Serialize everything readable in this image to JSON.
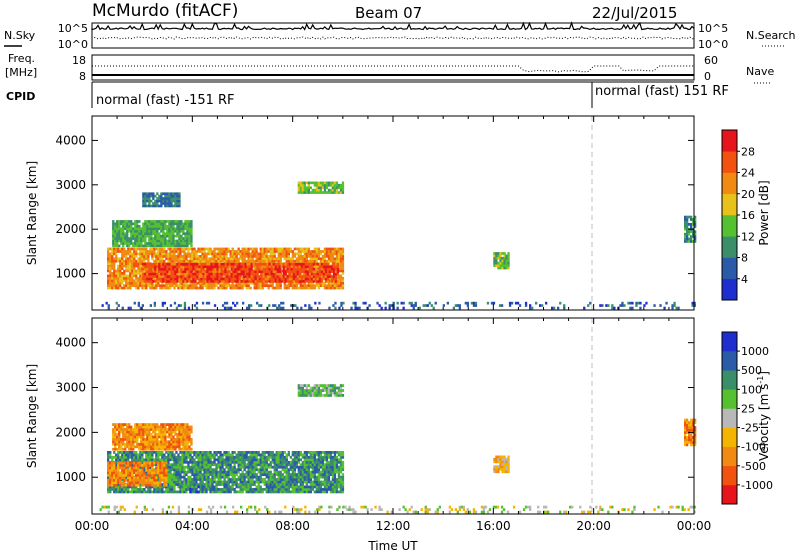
{
  "header": {
    "station": "McMurdo (fitACF)",
    "beam": "Beam 07",
    "date": "22/Jul/2015"
  },
  "noise_panel": {
    "left_label": "N.Sky",
    "right_label": "N.Search",
    "left_ticks": [
      "10^5",
      "10^0"
    ],
    "right_ticks": [
      "10^5",
      "10^0"
    ]
  },
  "freq_panel": {
    "left_label_line1": "Freq.",
    "left_label_line2": "[MHz]",
    "left_ticks": [
      "18",
      "8"
    ],
    "right_label": "Nave",
    "right_ticks": [
      "60",
      "0"
    ]
  },
  "cpid": {
    "label": "CPID",
    "segments": [
      {
        "text": "normal (fast) -151 RF",
        "start_hour": 0
      },
      {
        "text": "normal (fast) 151 RF",
        "start_hour": 20
      }
    ]
  },
  "x_axis": {
    "label": "Time UT",
    "range_hours": [
      0,
      24
    ],
    "ticks": [
      {
        "hour": 0,
        "label": "00:00"
      },
      {
        "hour": 4,
        "label": "04:00"
      },
      {
        "hour": 8,
        "label": "08:00"
      },
      {
        "hour": 12,
        "label": "12:00"
      },
      {
        "hour": 16,
        "label": "16:00"
      },
      {
        "hour": 20,
        "label": "20:00"
      },
      {
        "hour": 24,
        "label": "00:00"
      }
    ]
  },
  "colors": {
    "power": [
      "#1f2ecf",
      "#2b5aa8",
      "#3a8f6a",
      "#55c030",
      "#e8c21a",
      "#f08a12",
      "#f25210",
      "#e8141c"
    ],
    "velocity": [
      "#e8141c",
      "#f25210",
      "#f08a12",
      "#f5b400",
      "#b8b8b8",
      "#55c030",
      "#3a8f6a",
      "#2b5aa8",
      "#1f2ecf"
    ]
  },
  "chart_data": [
    {
      "type": "heatmap",
      "name_label": "Power [dB]",
      "ylabel": "Slant Range [km]",
      "xlabel": "",
      "ylim": [
        180,
        4550
      ],
      "yticks": [
        1000,
        2000,
        3000,
        4000
      ],
      "colorbar_ticks": [
        "4",
        "8",
        "12",
        "16",
        "20",
        "24",
        "28"
      ],
      "colorbar_range": [
        0,
        32
      ],
      "regions": [
        {
          "t0": 0.6,
          "t1": 10.0,
          "r0": 650,
          "r1": 1550,
          "base": 22
        },
        {
          "t0": 2.0,
          "t1": 9.8,
          "r0": 800,
          "r1": 1200,
          "base": 27
        },
        {
          "t0": 0.8,
          "t1": 4.0,
          "r0": 1600,
          "r1": 2200,
          "base": 12
        },
        {
          "t0": 8.2,
          "t1": 10.0,
          "r0": 2800,
          "r1": 3050,
          "base": 14
        },
        {
          "t0": 2.0,
          "t1": 3.5,
          "r0": 2500,
          "r1": 2800,
          "base": 8
        },
        {
          "t0": 16.0,
          "t1": 16.6,
          "r0": 1100,
          "r1": 1450,
          "base": 14
        },
        {
          "t0": 23.6,
          "t1": 24.0,
          "r0": 1700,
          "r1": 2300,
          "base": 10
        },
        {
          "t0": 0.3,
          "t1": 24.0,
          "r0": 200,
          "r1": 330,
          "base": 6
        }
      ]
    },
    {
      "type": "heatmap",
      "name_label": "Velocity [m s^-1]",
      "ylabel": "Slant Range [km]",
      "xlabel": "Time UT",
      "ylim": [
        180,
        4550
      ],
      "yticks": [
        1000,
        2000,
        3000,
        4000
      ],
      "colorbar_ticks": [
        "1000",
        "500",
        "100",
        "25",
        "-25",
        "-100",
        "-500",
        "-1000"
      ],
      "regions": [
        {
          "t0": 0.6,
          "t1": 10.0,
          "r0": 650,
          "r1": 1550,
          "base": 6
        },
        {
          "t0": 0.6,
          "t1": 3.0,
          "r0": 800,
          "r1": 1300,
          "base": 2
        },
        {
          "t0": 3.8,
          "t1": 4.6,
          "r0": 650,
          "r1": 800,
          "base": 8
        },
        {
          "t0": 0.8,
          "t1": 4.0,
          "r0": 1600,
          "r1": 2200,
          "base": 2
        },
        {
          "t0": 8.2,
          "t1": 10.0,
          "r0": 2800,
          "r1": 3050,
          "base": 5
        },
        {
          "t0": 16.0,
          "t1": 16.6,
          "r0": 1100,
          "r1": 1450,
          "base": 3
        },
        {
          "t0": 23.6,
          "t1": 24.0,
          "r0": 1700,
          "r1": 2300,
          "base": 2
        },
        {
          "t0": 0.3,
          "t1": 24.0,
          "r0": 200,
          "r1": 330,
          "base": 4
        }
      ]
    }
  ]
}
